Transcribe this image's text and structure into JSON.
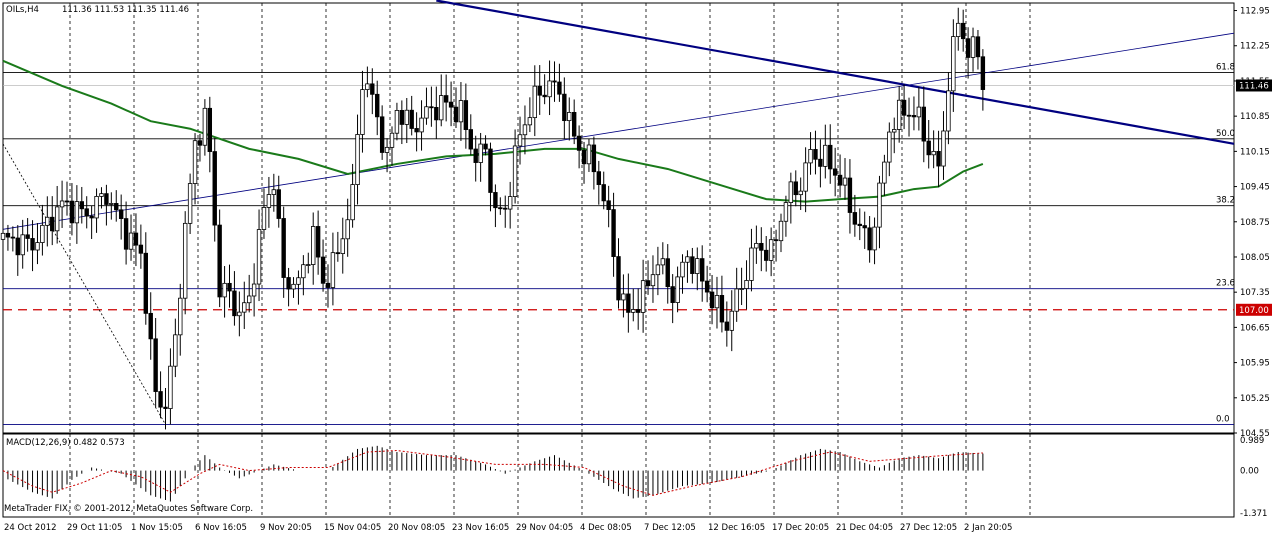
{
  "header": {
    "symbol_title": "OILs,H4",
    "ohlc": "111.36 111.53 111.35 111.46",
    "macd_label": "MACD(12,26,9) 0.482 0.573",
    "copyright": "MetaTrader FIX, © 2001-2012, MetaQuotes Software Corp."
  },
  "chart_data": [
    {
      "type": "candlestick",
      "title": "OILs,H4",
      "ylim": [
        104.55,
        113.1
      ],
      "y_ticks": [
        "112.95",
        "112.25",
        "111.55",
        "110.85",
        "110.15",
        "109.45",
        "108.75",
        "108.05",
        "107.35",
        "106.65",
        "105.95",
        "105.25",
        "104.55"
      ],
      "current_price": "111.46",
      "horizontal_lines": [
        {
          "label": "107.00",
          "value": 107.0,
          "style": "dashed",
          "color": "#cc0000"
        }
      ],
      "fibonacci_levels": [
        {
          "label": "0.0",
          "value": 104.72
        },
        {
          "label": "23.6",
          "value": 107.42
        },
        {
          "label": "38.2",
          "value": 109.07
        },
        {
          "label": "50.0",
          "value": 110.4
        },
        {
          "label": "61.8",
          "value": 111.72
        }
      ],
      "x_labels": [
        "24 Oct 2012",
        "29 Oct 11:05",
        "1 Nov 15:05",
        "6 Nov 16:05",
        "9 Nov 20:05",
        "15 Nov 04:05",
        "20 Nov 08:05",
        "23 Nov 16:05",
        "29 Nov 04:05",
        "4 Dec 08:05",
        "7 Dec 12:05",
        "12 Dec 16:05",
        "17 Dec 20:05",
        "21 Dec 04:05",
        "27 Dec 12:05",
        "2 Jan 20:05"
      ],
      "price_path": [
        {
          "t": 0,
          "p": 108.4
        },
        {
          "t": 6,
          "p": 108.3
        },
        {
          "t": 12,
          "p": 109.1
        },
        {
          "t": 17,
          "p": 108.9
        },
        {
          "t": 21,
          "p": 109.3
        },
        {
          "t": 25,
          "p": 108.5
        },
        {
          "t": 28,
          "p": 108.1
        },
        {
          "t": 31,
          "p": 105.3
        },
        {
          "t": 33,
          "p": 105.1
        },
        {
          "t": 35,
          "p": 106.4
        },
        {
          "t": 37,
          "p": 108.6
        },
        {
          "t": 39,
          "p": 110.3
        },
        {
          "t": 41,
          "p": 110.8
        },
        {
          "t": 42,
          "p": 110.1
        },
        {
          "t": 44,
          "p": 107.4
        },
        {
          "t": 46,
          "p": 107.3
        },
        {
          "t": 48,
          "p": 106.9
        },
        {
          "t": 50,
          "p": 107.2
        },
        {
          "t": 53,
          "p": 109.0
        },
        {
          "t": 55,
          "p": 109.6
        },
        {
          "t": 57,
          "p": 107.6
        },
        {
          "t": 60,
          "p": 107.5
        },
        {
          "t": 63,
          "p": 108.5
        },
        {
          "t": 65,
          "p": 107.5
        },
        {
          "t": 68,
          "p": 108.1
        },
        {
          "t": 71,
          "p": 109.3
        },
        {
          "t": 73,
          "p": 111.6
        },
        {
          "t": 75,
          "p": 111.2
        },
        {
          "t": 78,
          "p": 110.0
        },
        {
          "t": 80,
          "p": 111.0
        },
        {
          "t": 83,
          "p": 110.6
        },
        {
          "t": 87,
          "p": 111.0
        },
        {
          "t": 90,
          "p": 111.1
        },
        {
          "t": 93,
          "p": 110.9
        },
        {
          "t": 96,
          "p": 110.0
        },
        {
          "t": 98,
          "p": 110.2
        },
        {
          "t": 100,
          "p": 108.9
        },
        {
          "t": 102,
          "p": 109.0
        },
        {
          "t": 105,
          "p": 110.5
        },
        {
          "t": 108,
          "p": 111.2
        },
        {
          "t": 111,
          "p": 111.5
        },
        {
          "t": 113,
          "p": 111.3
        },
        {
          "t": 115,
          "p": 110.7
        },
        {
          "t": 117,
          "p": 110.2
        },
        {
          "t": 119,
          "p": 110.0
        },
        {
          "t": 121,
          "p": 109.6
        },
        {
          "t": 123,
          "p": 108.8
        },
        {
          "t": 125,
          "p": 107.4
        },
        {
          "t": 127,
          "p": 106.9
        },
        {
          "t": 130,
          "p": 107.3
        },
        {
          "t": 133,
          "p": 108.0
        },
        {
          "t": 136,
          "p": 107.3
        },
        {
          "t": 139,
          "p": 108.1
        },
        {
          "t": 142,
          "p": 107.6
        },
        {
          "t": 145,
          "p": 107.0
        },
        {
          "t": 147,
          "p": 106.7
        },
        {
          "t": 150,
          "p": 107.5
        },
        {
          "t": 153,
          "p": 108.3
        },
        {
          "t": 156,
          "p": 108.1
        },
        {
          "t": 159,
          "p": 109.2
        },
        {
          "t": 162,
          "p": 109.5
        },
        {
          "t": 164,
          "p": 110.1
        },
        {
          "t": 167,
          "p": 110.0
        },
        {
          "t": 170,
          "p": 109.6
        },
        {
          "t": 173,
          "p": 108.8
        },
        {
          "t": 176,
          "p": 108.3
        },
        {
          "t": 178,
          "p": 109.3
        },
        {
          "t": 180,
          "p": 110.6
        },
        {
          "t": 183,
          "p": 111.0
        },
        {
          "t": 186,
          "p": 110.8
        },
        {
          "t": 188,
          "p": 110.2
        },
        {
          "t": 190,
          "p": 109.8
        },
        {
          "t": 192,
          "p": 111.5
        },
        {
          "t": 194,
          "p": 112.8
        },
        {
          "t": 196,
          "p": 112.1
        },
        {
          "t": 198,
          "p": 112.2
        },
        {
          "t": 199,
          "p": 111.46
        }
      ],
      "ma_line": [
        {
          "t": 0,
          "p": 111.95
        },
        {
          "t": 12,
          "p": 111.45
        },
        {
          "t": 22,
          "p": 111.1
        },
        {
          "t": 30,
          "p": 110.75
        },
        {
          "t": 38,
          "p": 110.6
        },
        {
          "t": 50,
          "p": 110.2
        },
        {
          "t": 60,
          "p": 110.0
        },
        {
          "t": 70,
          "p": 109.7
        },
        {
          "t": 80,
          "p": 109.9
        },
        {
          "t": 90,
          "p": 110.05
        },
        {
          "t": 100,
          "p": 110.1
        },
        {
          "t": 110,
          "p": 110.2
        },
        {
          "t": 118,
          "p": 110.2
        },
        {
          "t": 125,
          "p": 110.0
        },
        {
          "t": 135,
          "p": 109.8
        },
        {
          "t": 145,
          "p": 109.5
        },
        {
          "t": 155,
          "p": 109.2
        },
        {
          "t": 163,
          "p": 109.15
        },
        {
          "t": 170,
          "p": 109.2
        },
        {
          "t": 178,
          "p": 109.25
        },
        {
          "t": 185,
          "p": 109.4
        },
        {
          "t": 190,
          "p": 109.45
        },
        {
          "t": 195,
          "p": 109.75
        },
        {
          "t": 199,
          "p": 109.9
        }
      ],
      "trendlines": [
        {
          "name": "resistance",
          "from": {
            "t": 88,
            "p": 113.15
          },
          "to": {
            "t": 250,
            "p": 110.3
          },
          "color": "#000080",
          "width": 2.2
        },
        {
          "name": "support",
          "from": {
            "t": 0,
            "p": 108.6
          },
          "to": {
            "t": 250,
            "p": 112.5
          },
          "color": "#000080",
          "width": 0.8
        },
        {
          "name": "fib-base",
          "from": {
            "t": 0,
            "p": 110.3
          },
          "to": {
            "t": 33,
            "p": 104.72
          },
          "color": "#000000",
          "width": 0.8
        }
      ]
    },
    {
      "type": "bar",
      "title": "MACD(12,26,9)",
      "ylim": [
        -1.371,
        0.989
      ],
      "y_ticks": [
        "0.989",
        "0.00",
        "-1.371"
      ],
      "macd_path": [
        {
          "t": 0,
          "v": -0.2
        },
        {
          "t": 6,
          "v": -0.7
        },
        {
          "t": 10,
          "v": -0.9
        },
        {
          "t": 14,
          "v": -0.3
        },
        {
          "t": 18,
          "v": 0.1
        },
        {
          "t": 24,
          "v": -0.1
        },
        {
          "t": 30,
          "v": -0.8
        },
        {
          "t": 34,
          "v": -1.0
        },
        {
          "t": 38,
          "v": 0.0
        },
        {
          "t": 41,
          "v": 0.5
        },
        {
          "t": 44,
          "v": 0.1
        },
        {
          "t": 48,
          "v": -0.25
        },
        {
          "t": 52,
          "v": 0.0
        },
        {
          "t": 55,
          "v": 0.2
        },
        {
          "t": 60,
          "v": 0.0
        },
        {
          "t": 66,
          "v": 0.0
        },
        {
          "t": 72,
          "v": 0.7
        },
        {
          "t": 76,
          "v": 0.8
        },
        {
          "t": 80,
          "v": 0.6
        },
        {
          "t": 86,
          "v": 0.5
        },
        {
          "t": 92,
          "v": 0.5
        },
        {
          "t": 98,
          "v": 0.2
        },
        {
          "t": 102,
          "v": -0.1
        },
        {
          "t": 108,
          "v": 0.3
        },
        {
          "t": 112,
          "v": 0.5
        },
        {
          "t": 118,
          "v": 0.0
        },
        {
          "t": 124,
          "v": -0.6
        },
        {
          "t": 128,
          "v": -0.9
        },
        {
          "t": 132,
          "v": -0.8
        },
        {
          "t": 138,
          "v": -0.5
        },
        {
          "t": 144,
          "v": -0.4
        },
        {
          "t": 150,
          "v": -0.2
        },
        {
          "t": 156,
          "v": 0.0
        },
        {
          "t": 162,
          "v": 0.5
        },
        {
          "t": 166,
          "v": 0.7
        },
        {
          "t": 170,
          "v": 0.6
        },
        {
          "t": 174,
          "v": 0.3
        },
        {
          "t": 178,
          "v": 0.1
        },
        {
          "t": 182,
          "v": 0.4
        },
        {
          "t": 186,
          "v": 0.5
        },
        {
          "t": 190,
          "v": 0.4
        },
        {
          "t": 194,
          "v": 0.6
        },
        {
          "t": 199,
          "v": 0.55
        }
      ],
      "signal_path": [
        {
          "t": 0,
          "v": 0.0
        },
        {
          "t": 6,
          "v": -0.5
        },
        {
          "t": 10,
          "v": -0.7
        },
        {
          "t": 16,
          "v": -0.4
        },
        {
          "t": 22,
          "v": 0.0
        },
        {
          "t": 28,
          "v": -0.2
        },
        {
          "t": 34,
          "v": -0.7
        },
        {
          "t": 40,
          "v": -0.1
        },
        {
          "t": 44,
          "v": 0.2
        },
        {
          "t": 50,
          "v": 0.0
        },
        {
          "t": 58,
          "v": 0.1
        },
        {
          "t": 66,
          "v": 0.1
        },
        {
          "t": 74,
          "v": 0.6
        },
        {
          "t": 80,
          "v": 0.65
        },
        {
          "t": 90,
          "v": 0.45
        },
        {
          "t": 100,
          "v": 0.2
        },
        {
          "t": 110,
          "v": 0.2
        },
        {
          "t": 118,
          "v": 0.1
        },
        {
          "t": 126,
          "v": -0.5
        },
        {
          "t": 132,
          "v": -0.8
        },
        {
          "t": 140,
          "v": -0.5
        },
        {
          "t": 150,
          "v": -0.2
        },
        {
          "t": 160,
          "v": 0.3
        },
        {
          "t": 168,
          "v": 0.6
        },
        {
          "t": 176,
          "v": 0.3
        },
        {
          "t": 184,
          "v": 0.4
        },
        {
          "t": 192,
          "v": 0.5
        },
        {
          "t": 199,
          "v": 0.57
        }
      ]
    }
  ],
  "colors": {
    "background": "#ffffff",
    "candle_bull": "#000000",
    "candle_bear": "#000000",
    "ma": "#1a7a1a",
    "trend": "#000080",
    "level_107": "#cc0000",
    "macd_signal": "#cc0000",
    "grid": "#000000"
  }
}
